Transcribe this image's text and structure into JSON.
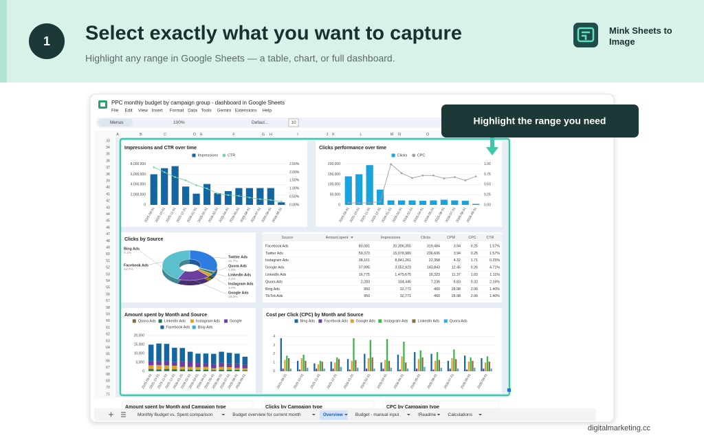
{
  "header": {
    "step": "1",
    "title": "Select exactly what you want to capture",
    "subtitle": "Highlight any range in Google Sheets — a table, chart, or full dashboard."
  },
  "brand": {
    "name": "Mink Sheets to Image"
  },
  "callout": "Highlight the range you need",
  "footer": "digitalmarketing.cc",
  "sheet": {
    "doc_title": "PPC monthly budget by campaign group - dashboard in Google Sheets",
    "menu": [
      "File",
      "Edit",
      "View",
      "Insert",
      "Format",
      "Data",
      "Tools",
      "Gemini",
      "Extensions",
      "Help"
    ],
    "toolbar": {
      "search": "Menus",
      "zoom": "100%",
      "font": "Defaul...",
      "size": "10"
    },
    "columns": [
      "A",
      "B",
      "C",
      "D",
      "E",
      "F",
      "G",
      "H",
      "I",
      "J",
      "K",
      "L",
      "M",
      "N",
      "O"
    ],
    "rows": [
      33,
      34,
      35,
      36,
      37,
      38,
      39,
      40,
      41,
      42,
      43,
      44,
      45,
      46,
      47,
      48,
      49,
      50,
      51,
      52,
      53,
      54,
      55,
      56,
      57,
      58,
      59,
      60,
      61,
      62,
      63,
      64,
      65,
      66,
      67,
      68,
      69,
      70,
      71
    ],
    "tabs": [
      "Monthly Budget vs. Spent comparison",
      "Budget overview for current month",
      "Overview",
      "Budget - manual input",
      "!Readme",
      "Calculations"
    ],
    "active_tab": 2
  },
  "dashboard": {
    "charts": [
      {
        "type": "combo",
        "title": "Impressions and CTR over time",
        "categories": [
          "2025-09-01",
          "2025-10-01",
          "2025-11-01",
          "2025-12-01",
          "2026-01-01",
          "2026-02-01",
          "2026-03-01",
          "2026-04-01",
          "2026-05-01",
          "2026-06-01",
          "2026-07-01",
          "2026-08-01",
          "2026-09-01"
        ],
        "series": [
          {
            "name": "Impressions",
            "color": "#1565a0",
            "values": [
              6000000,
              7200000,
              7600000,
              3600000,
              2200000,
              4100000,
              2300000,
              2700000,
              3300000,
              3300000,
              3300000,
              3300000,
              500000
            ]
          },
          {
            "name": "CTR",
            "color": "#7fd0a8",
            "axis": "y2",
            "values": [
              2.3,
              2.0,
              1.7,
              1.5,
              1.2,
              1.0,
              0.7,
              0.6,
              0.55,
              0.45,
              0.35,
              0.3,
              0.2
            ]
          }
        ],
        "ylim": [
          0,
          8500000
        ],
        "yticks": [
          0,
          {
            "value": 2000000,
            "label": "2,000,000"
          },
          {
            "value": 4000000,
            "label": "4,000,000"
          },
          {
            "value": 6000000,
            "label": "6,000,000"
          },
          {
            "value": 8000000,
            "label": "8,000,000"
          }
        ],
        "y2lim": [
          0,
          2.65
        ],
        "y2ticks": [
          {
            "value": 0,
            "label": "0.00%"
          },
          {
            "value": 0.5,
            "label": "0.50%"
          },
          {
            "value": 1,
            "label": "1.00%"
          },
          {
            "value": 1.5,
            "label": "1.50%"
          },
          {
            "value": 2,
            "label": "2.00%"
          },
          {
            "value": 2.5,
            "label": "2.50%"
          }
        ]
      },
      {
        "type": "combo",
        "title": "Clicks performance over time",
        "categories": [
          "2025-09-01",
          "2025-10-01",
          "2025-11-01",
          "2025-12-01",
          "2026-01-01",
          "2026-02-01",
          "2026-03-01",
          "2026-04-01",
          "2026-05-01",
          "2026-06-01",
          "2026-07-01",
          "2026-08-01",
          "2026-09-01"
        ],
        "series": [
          {
            "name": "Clicks",
            "color": "#1aa2dc",
            "values": [
              140000,
              150000,
              195000,
              75000,
              22000,
              22000,
              22000,
              20000,
              22000,
              25000,
              22000,
              20000,
              5000
            ]
          },
          {
            "name": "CPC",
            "color": "#9e9e9e",
            "axis": "y2",
            "values": [
              0.05,
              0.05,
              0.05,
              0.08,
              1.0,
              0.78,
              0.66,
              0.72,
              0.72,
              0.65,
              0.68,
              0.6,
              0.7
            ]
          }
        ],
        "ylim": [
          0,
          212500
        ],
        "yticks": [
          0,
          {
            "value": 50000,
            "label": "50,000"
          },
          {
            "value": 100000,
            "label": "100,000"
          },
          {
            "value": 150000,
            "label": "150,000"
          },
          {
            "value": 200000,
            "label": "200,000"
          }
        ],
        "y2lim": [
          0,
          1.0625
        ],
        "y2ticks": [
          {
            "value": 0,
            "label": "0.00"
          },
          0.25,
          {
            "value": 0.5,
            "label": "0.50"
          },
          0.75,
          {
            "value": 1,
            "label": "1.00"
          }
        ]
      },
      {
        "type": "pie",
        "title": "Clicks by Source",
        "categories": [
          "Twitter Ads",
          "Quora Ads",
          "LinkedIn Ads",
          "Instagram Ads",
          "Google Ads",
          "Bing Ads",
          "Facebook Ads"
        ],
        "values": [
          31.7,
          1.0,
          2.2,
          3.0,
          19.3,
          0.1,
          42.7
        ],
        "value_labels": [
          "31.7%",
          "1.0%",
          "2.2%",
          "3.0%",
          "19.3%",
          "0.1%",
          "42.7%"
        ],
        "colors": [
          "#2d7de0",
          "#8b6a3e",
          "#1e7a4e",
          "#e0a030",
          "#6a3fa0",
          "#1565a0",
          "#5bc0cd"
        ]
      },
      {
        "type": "stacked",
        "title": "Amount spent by Month and Source",
        "categories": [
          "2025-09-01",
          "2025-10-01",
          "2025-11-01",
          "2025-12-01",
          "2026-01-01",
          "2026-02-01",
          "2026-03-01",
          "2026-04-01",
          "2026-05-01",
          "2026-06-01",
          "2026-07-01",
          "2026-08-01",
          "2026-09-01"
        ],
        "series": [
          {
            "name": "Quora Ads",
            "color": "#8b6a3e",
            "values": [
              300,
              200,
              300,
              200,
              200,
              200,
              200,
              200,
              100,
              200,
              200,
              100,
              100
            ]
          },
          {
            "name": "LinkedIn Ads",
            "color": "#1e7a4e",
            "values": [
              1000,
              800,
              1000,
              900,
              800,
              700,
              600,
              700,
              600,
              700,
              600,
              700,
              500
            ]
          },
          {
            "name": "Instagram Ads",
            "color": "#e0a030",
            "values": [
              2000,
              2500,
              2000,
              2000,
              1500,
              1500,
              1500,
              1500,
              1000,
              1500,
              1500,
              1000,
              1000
            ]
          },
          {
            "name": "Google",
            "color": "#6a3fa0",
            "values": [
              2500,
              2000,
              2500,
              2000,
              3000,
              3000,
              2500,
              2000,
              2500,
              2500,
              2000,
              2500,
              2000
            ]
          },
          {
            "name": "Facebook Ads",
            "color": "#1565a0",
            "values": [
              9000,
              10000,
              9500,
              8000,
              7500,
              5500,
              5000,
              5500,
              5500,
              6000,
              6000,
              5500,
              4500
            ]
          },
          {
            "name": "Bing Ads",
            "color": "#3aa9d8",
            "values": [
              100,
              100,
              100,
              100,
              100,
              100,
              100,
              100,
              100,
              100,
              100,
              100,
              50
            ]
          }
        ],
        "ylim": [
          0,
          20000
        ],
        "yticks": [
          0,
          {
            "value": 5000,
            "label": "5,000"
          },
          {
            "value": 10000,
            "label": "10,000"
          },
          {
            "value": 15000,
            "label": "15,000"
          },
          {
            "value": 20000,
            "label": "20,000"
          }
        ]
      },
      {
        "type": "grouped",
        "title": "Cost per Click (CPC) by Month and Source",
        "categories": [
          "2025-09-01",
          "2025-10-01",
          "2025-11-01",
          "2025-12-01",
          "2026-01-01",
          "2026-02-01",
          "2026-03-01",
          "2026-04-01",
          "2026-05-01",
          "2026-06-01",
          "2026-07-01",
          "2026-08-01",
          "2026-09-01"
        ],
        "series": [
          {
            "name": "Bing Ads",
            "color": "#1565a0",
            "values": [
              3.8,
              1.2,
              0.9,
              1.1,
              1.4,
              2.0,
              1.0,
              1.9,
              2.2,
              2.0,
              1.2,
              1.8,
              1.5
            ]
          },
          {
            "name": "Facebook Ads",
            "color": "#6a3fa0",
            "values": [
              0.3,
              0.2,
              0.3,
              0.3,
              0.2,
              0.3,
              0.3,
              0.2,
              0.3,
              0.2,
              0.3,
              0.2,
              0.3
            ]
          },
          {
            "name": "Google Ads",
            "color": "#e0a030",
            "values": [
              1.3,
              1.5,
              0.8,
              1.0,
              1.2,
              1.5,
              1.3,
              1.7,
              1.4,
              1.2,
              1.5,
              1.1,
              1.0
            ]
          },
          {
            "name": "Instagram Ads",
            "color": "#3bb54a",
            "values": [
              1.8,
              1.9,
              1.2,
              1.6,
              3.8,
              3.6,
              3.7,
              3.4,
              2.4,
              2.2,
              2.5,
              1.6,
              1.7
            ]
          },
          {
            "name": "LinkedIn Ads",
            "color": "#8b6a3e",
            "values": [
              1.5,
              1.2,
              1.1,
              1.4,
              1.3,
              1.6,
              1.2,
              1.0,
              1.6,
              1.3,
              1.4,
              1.2,
              1.1
            ]
          },
          {
            "name": "Quora Ads",
            "color": "#3aa9d8",
            "values": [
              0.3,
              0.4,
              0.3,
              0.5,
              0.4,
              0.3,
              0.4,
              0.3,
              0.5,
              0.4,
              0.3,
              0.4,
              0.3
            ]
          }
        ],
        "ylim": [
          0,
          4.5
        ],
        "yticks": [
          0,
          1,
          2,
          3,
          4
        ]
      }
    ],
    "table": {
      "header": [
        "Source",
        "Amount spent",
        "Impressions",
        "Clicks",
        "CPM",
        "CPC",
        "CTR"
      ],
      "rows": [
        [
          "Facebook Ads",
          "80,081",
          "20,306,355",
          "319,484",
          "3.94",
          "0.25",
          "1.57%"
        ],
        [
          "Twitter Ads",
          "59,373",
          "15,078,980",
          "236,606",
          "3.94",
          "0.25",
          "1.57%"
        ],
        [
          "Instagram Ads",
          "38,161",
          "8,841,261",
          "22,358",
          "4.32",
          "1.71",
          "0.25%"
        ],
        [
          "Google Ads",
          "37,995",
          "3,052,923",
          "143,843",
          "12.45",
          "0.26",
          "4.71%"
        ],
        [
          "LinkedIn Ads",
          "16,775",
          "1,475,675",
          "16,323",
          "11.37",
          "1.03",
          "1.11%"
        ],
        [
          "Quora Ads",
          "2,283",
          "334,445",
          "7,236",
          "6.83",
          "0.32",
          "2.16%"
        ],
        [
          "Bing Ads",
          "950",
          "32,771",
          "460",
          "28.98",
          "2.06",
          "1.40%"
        ],
        [
          "TikTok Ads",
          "950",
          "32,771",
          "460",
          "28.98",
          "2.06",
          "1.40%"
        ]
      ]
    },
    "more_charts": [
      "Amount spent by Month and Campaign type",
      "Clicks by Campaign type",
      "CPC by Campaign type"
    ]
  }
}
